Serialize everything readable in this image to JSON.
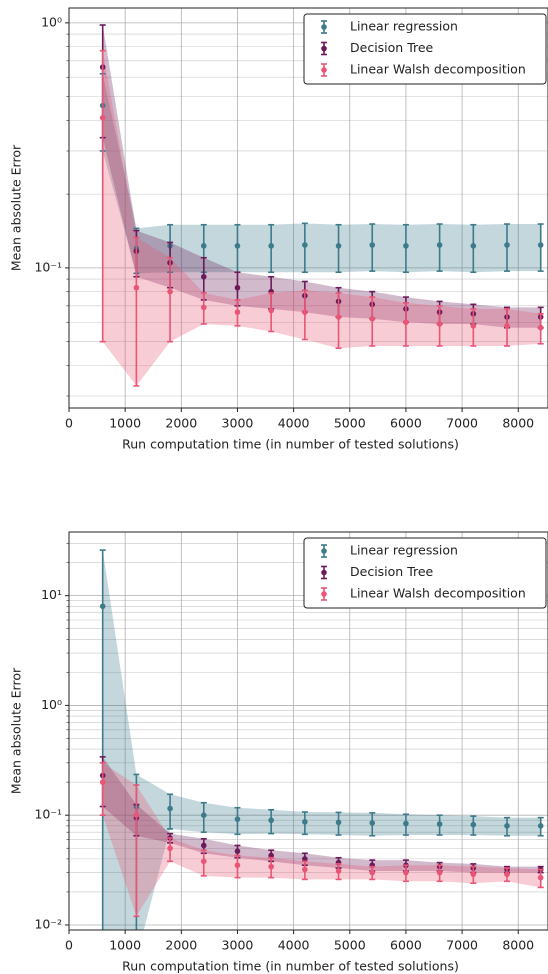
{
  "chart_data": [
    {
      "type": "errorbar",
      "ylabel": "Mean absolute Error",
      "xlabel": "Run computation time (in number of tested solutions)",
      "yscale": "log",
      "grid": true,
      "legend": "upper right",
      "x": [
        600,
        1200,
        1800,
        2400,
        3000,
        3600,
        4200,
        4800,
        5400,
        6000,
        6600,
        7200,
        7800,
        8400
      ],
      "xlim": [
        0,
        8530
      ],
      "xticks": [
        0,
        1000,
        2000,
        3000,
        4000,
        5000,
        6000,
        7000,
        8000
      ],
      "ylim": [
        0.0268,
        1.15
      ],
      "yticks": [
        {
          "value": 0.1,
          "label": "10⁻¹"
        },
        {
          "value": 1,
          "label": "10⁰"
        }
      ],
      "yminorticks": [
        0.03,
        0.04,
        0.05,
        0.06,
        0.07,
        0.08,
        0.09,
        0.2,
        0.3,
        0.4,
        0.5,
        0.6,
        0.7,
        0.8,
        0.9
      ],
      "series": [
        {
          "name": "Linear regression",
          "color": "#3d7a8a",
          "values": [
            0.46,
            0.12,
            0.123,
            0.123,
            0.123,
            0.123,
            0.124,
            0.123,
            0.124,
            0.123,
            0.124,
            0.123,
            0.124,
            0.124
          ],
          "errors": [
            0.16,
            0.025,
            0.027,
            0.027,
            0.027,
            0.027,
            0.028,
            0.027,
            0.027,
            0.027,
            0.027,
            0.027,
            0.027,
            0.027
          ]
        },
        {
          "name": "Decision Tree",
          "color": "#6b1a5a",
          "values": [
            0.66,
            0.117,
            0.105,
            0.092,
            0.083,
            0.08,
            0.077,
            0.073,
            0.071,
            0.068,
            0.066,
            0.065,
            0.063,
            0.063
          ],
          "errors": [
            0.32,
            0.025,
            0.022,
            0.018,
            0.013,
            0.012,
            0.011,
            0.01,
            0.009,
            0.008,
            0.007,
            0.006,
            0.006,
            0.006
          ]
        },
        {
          "name": "Linear Walsh decomposition",
          "color": "#e85575",
          "values": [
            0.41,
            0.083,
            0.08,
            0.069,
            0.066,
            0.067,
            0.066,
            0.063,
            0.062,
            0.06,
            0.059,
            0.058,
            0.058,
            0.057
          ],
          "errors": [
            0.36,
            0.05,
            0.03,
            0.01,
            0.008,
            0.012,
            0.015,
            0.016,
            0.014,
            0.012,
            0.011,
            0.01,
            0.01,
            0.008
          ]
        }
      ]
    },
    {
      "type": "errorbar",
      "ylabel": "Mean absolute Error",
      "xlabel": "Run computation time (in number of tested solutions)",
      "yscale": "log",
      "grid": true,
      "legend": "upper right",
      "x": [
        600,
        1200,
        1800,
        2400,
        3000,
        3600,
        4200,
        4800,
        5400,
        6000,
        6600,
        7200,
        7800,
        8400
      ],
      "xlim": [
        0,
        8530
      ],
      "xticks": [
        0,
        1000,
        2000,
        3000,
        4000,
        5000,
        6000,
        7000,
        8000
      ],
      "ylim": [
        0.009,
        38
      ],
      "yticks": [
        {
          "value": 0.01,
          "label": "10⁻²"
        },
        {
          "value": 0.1,
          "label": "10⁻¹"
        },
        {
          "value": 1,
          "label": "10⁰"
        },
        {
          "value": 10,
          "label": "10¹"
        }
      ],
      "yminorticks": [
        0.02,
        0.03,
        0.04,
        0.05,
        0.06,
        0.07,
        0.08,
        0.09,
        0.2,
        0.3,
        0.4,
        0.5,
        0.6,
        0.7,
        0.8,
        0.9,
        2,
        3,
        4,
        5,
        6,
        7,
        8,
        9,
        20,
        30
      ],
      "series": [
        {
          "name": "Linear regression",
          "color": "#3d7a8a",
          "values": [
            8,
            0.12,
            0.115,
            0.1,
            0.092,
            0.09,
            0.087,
            0.086,
            0.085,
            0.084,
            0.083,
            0.082,
            0.08,
            0.08
          ],
          "errors": [
            18,
            0.115,
            0.04,
            0.03,
            0.025,
            0.022,
            0.02,
            0.02,
            0.02,
            0.018,
            0.017,
            0.016,
            0.015,
            0.015
          ]
        },
        {
          "name": "Decision Tree",
          "color": "#6b1a5a",
          "values": [
            0.23,
            0.095,
            0.062,
            0.053,
            0.047,
            0.043,
            0.04,
            0.037,
            0.035,
            0.035,
            0.034,
            0.033,
            0.032,
            0.032
          ],
          "errors": [
            0.11,
            0.03,
            0.006,
            0.008,
            0.006,
            0.005,
            0.005,
            0.004,
            0.004,
            0.004,
            0.003,
            0.003,
            0.002,
            0.002
          ]
        },
        {
          "name": "Linear Walsh decomposition",
          "color": "#e85575",
          "values": [
            0.2,
            0.1,
            0.05,
            0.038,
            0.035,
            0.034,
            0.032,
            0.031,
            0.03,
            0.03,
            0.03,
            0.029,
            0.029,
            0.027
          ],
          "errors": [
            0.1,
            0.088,
            0.012,
            0.01,
            0.008,
            0.007,
            0.006,
            0.005,
            0.004,
            0.005,
            0.005,
            0.005,
            0.004,
            0.005
          ]
        }
      ]
    }
  ]
}
